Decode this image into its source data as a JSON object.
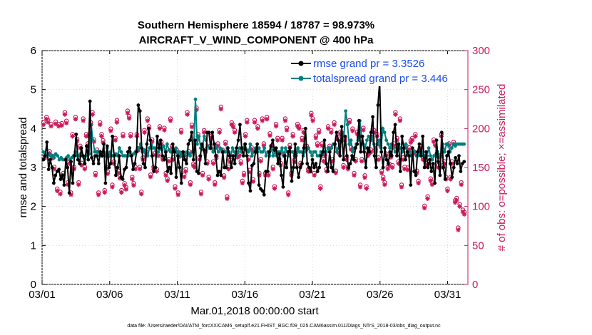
{
  "chart_data": {
    "type": "line",
    "title_line1": "Southern Hemisphere 18594 / 18787 = 98.973%",
    "title_line2": "AIRCRAFT_V_WIND_COMPONENT @ 400 hPa",
    "xlabel": "Mar.01,2018 00:00:00 start",
    "ylabel": "rmse and totalspread",
    "ylabel_right": "# of obs: o=possible; ×=assimilated",
    "footnote": "data file: /Users/raeder/DAI/ATM_forcXX/CAM6_setup/f.e21.FHIST_BGC.f09_025.CAM6assim.011/Diags_NTrS_2018-03/obs_diag_output.nc",
    "xlim": [
      0,
      31.5
    ],
    "ylim": [
      0,
      6
    ],
    "ylim_right": [
      0,
      300
    ],
    "x_ticks": [
      {
        "value": 0,
        "label": "03/01"
      },
      {
        "value": 5,
        "label": "03/06"
      },
      {
        "value": 10,
        "label": "03/11"
      },
      {
        "value": 15,
        "label": "03/16"
      },
      {
        "value": 20,
        "label": "03/21"
      },
      {
        "value": 25,
        "label": "03/26"
      },
      {
        "value": 30,
        "label": "03/31"
      }
    ],
    "y_ticks": [
      0,
      1,
      2,
      3,
      4,
      5,
      6
    ],
    "y_ticks_right": [
      0,
      50,
      100,
      150,
      200,
      250,
      300
    ],
    "series": [
      {
        "name": "rmse grand pr = 3.3526",
        "color": "#000000",
        "values": [
          3.2,
          3.3,
          3.65,
          2.95,
          3.2,
          3.0,
          2.6,
          2.8,
          2.9,
          2.95,
          2.7,
          2.8,
          2.55,
          3.2,
          3.0,
          2.35,
          3.15,
          2.6,
          3.3,
          3.85,
          3.2,
          3.1,
          3.5,
          3.3,
          3.1,
          3.55,
          3.2,
          4.7,
          3.25,
          3.1,
          3.3,
          3.3,
          3.1,
          3.4,
          3.3,
          3.6,
          2.6,
          3.55,
          3.0,
          3.1,
          3.8,
          3.3,
          2.8,
          3.0,
          3.3,
          2.75,
          2.7,
          2.95,
          3.0,
          3.4,
          3.5,
          3.3,
          2.95,
          3.1,
          3.4,
          4.6,
          4.45,
          3.5,
          3.1,
          3.0,
          3.6,
          4.0,
          3.7,
          3.3,
          2.9,
          3.0,
          3.8,
          3.5,
          3.7,
          3.3,
          3.2,
          3.4,
          2.9,
          3.0,
          2.85,
          3.6,
          3.4,
          2.75,
          3.3,
          3.0,
          2.6,
          3.4,
          3.2,
          3.1,
          3.6,
          3.7,
          3.9,
          3.2,
          3.7,
          2.9,
          2.85,
          3.3,
          3.6,
          3.45,
          3.1,
          3.9,
          3.9,
          3.5,
          3.9,
          3.6,
          3.3,
          2.8,
          2.9,
          2.8,
          3.4,
          3.0,
          3.0,
          3.5,
          3.3,
          3.0,
          3.3,
          3.1,
          3.5,
          3.7,
          4.1,
          3.5,
          3.3,
          3.6,
          3.3,
          2.6,
          2.4,
          3.05,
          3.1,
          3.4,
          3.6,
          2.55,
          2.45,
          2.4,
          2.3,
          2.9,
          2.9,
          3.4,
          3.55,
          3.7,
          3.45,
          3.5,
          3.1,
          3.35,
          2.8,
          2.5,
          3.3,
          3.0,
          3.4,
          3.5,
          2.65,
          3.0,
          3.6,
          3.0,
          2.75,
          3.0,
          3.1,
          3.5,
          4.0,
          3.1,
          3.0,
          2.9,
          3.2,
          3.0,
          3.1,
          2.9,
          3.0,
          3.3,
          3.4,
          3.7,
          3.1,
          2.9,
          3.4,
          3.0,
          2.9,
          3.6,
          3.9,
          3.7,
          3.3,
          4.05,
          3.2,
          3.8,
          3.3,
          3.0,
          3.1,
          3.3,
          3.2,
          3.5,
          3.6,
          4.2,
          3.4,
          3.8,
          3.4,
          3.0,
          3.5,
          3.4,
          3.9,
          4.3,
          3.3,
          3.0,
          4.6,
          5.2,
          3.4,
          3.0,
          3.5,
          3.2,
          3.1,
          3.4,
          3.3,
          3.9,
          4.1,
          3.3,
          3.6,
          2.9,
          3.8,
          3.5,
          3.2,
          3.4,
          3.3,
          2.55,
          3.5,
          2.9,
          2.8,
          3.4,
          3.6,
          3.3,
          3.8,
          3.0,
          3.4,
          3.0,
          3.2,
          2.9,
          3.1,
          2.6,
          3.7,
          3.15,
          2.8,
          3.9,
          3.0,
          2.7,
          3.3,
          3.4,
          3.1,
          2.75,
          3.0,
          3.25,
          3.1,
          3.3,
          2.9,
          3.1,
          3.15
        ]
      },
      {
        "name": "totalspread grand pr = 3.446",
        "color": "#007f7f",
        "values": [
          3.4,
          3.35,
          3.3,
          3.35,
          3.3,
          3.3,
          3.25,
          3.35,
          3.3,
          3.2,
          3.25,
          3.2,
          3.2,
          3.25,
          3.3,
          3.2,
          3.25,
          3.3,
          3.4,
          3.3,
          3.3,
          3.35,
          3.3,
          3.25,
          3.3,
          3.3,
          3.35,
          4.1,
          3.7,
          3.4,
          3.4,
          3.4,
          3.3,
          3.3,
          3.4,
          3.3,
          3.5,
          3.3,
          3.4,
          3.3,
          3.3,
          3.35,
          3.3,
          3.5,
          3.4,
          3.3,
          3.3,
          3.3,
          3.3,
          3.4,
          3.3,
          3.35,
          3.4,
          3.45,
          3.5,
          3.6,
          3.4,
          3.45,
          3.3,
          3.3,
          3.5,
          3.6,
          3.5,
          3.5,
          3.3,
          3.4,
          3.5,
          3.45,
          3.55,
          3.4,
          3.6,
          3.45,
          3.4,
          3.4,
          3.4,
          3.5,
          3.3,
          3.4,
          3.3,
          3.35,
          3.3,
          3.4,
          3.35,
          3.3,
          3.4,
          3.5,
          4.75,
          3.6,
          3.8,
          3.5,
          3.55,
          3.8,
          3.7,
          3.55,
          3.5,
          3.5,
          3.4,
          3.6,
          3.5,
          3.4,
          3.5,
          3.45,
          3.4,
          3.4,
          3.5,
          3.4,
          3.3,
          3.5,
          3.4,
          3.3,
          3.4,
          3.5,
          3.4,
          3.5,
          3.6,
          3.45,
          3.4,
          3.6,
          3.3,
          3.4,
          3.5,
          3.4,
          3.5,
          3.4,
          3.4,
          3.5,
          3.3,
          3.4,
          3.3,
          3.5,
          3.3,
          3.4,
          3.3,
          3.4,
          3.4,
          3.5,
          3.3,
          3.5,
          3.4,
          3.3,
          3.4,
          3.4,
          3.3,
          3.3,
          3.5,
          3.4,
          3.4,
          3.3,
          3.4,
          3.45,
          3.5,
          3.4,
          3.3,
          3.4,
          3.4,
          3.3,
          3.3,
          3.4,
          3.35,
          3.4,
          3.4,
          3.5,
          3.4,
          3.5,
          3.6,
          3.6,
          3.4,
          3.5,
          3.65,
          3.9,
          3.8,
          4.45,
          4.1,
          3.6,
          3.7,
          3.4,
          3.5,
          3.6,
          3.7,
          4.2,
          3.8,
          3.6,
          3.5,
          3.7,
          3.8,
          3.7,
          3.8,
          3.6,
          3.5,
          3.6,
          3.7,
          3.5,
          4.0,
          3.9,
          3.7,
          3.6,
          3.5,
          3.6,
          3.5,
          3.4,
          3.5,
          3.6,
          3.5,
          3.4,
          3.5,
          3.6,
          3.4,
          3.4,
          3.3,
          3.4,
          3.4,
          3.3,
          3.3,
          3.4,
          3.4,
          3.3,
          3.3,
          3.3,
          3.5,
          3.3,
          3.2,
          3.3,
          3.3,
          3.4,
          3.3,
          3.3,
          3.6,
          3.4,
          3.6,
          3.6,
          3.4,
          3.5,
          3.6,
          3.55,
          3.6,
          3.6,
          3.6,
          3.6,
          3.6
        ]
      }
    ],
    "obs_possible": [
      205,
      162,
      212,
      208,
      168,
      203,
      162,
      148,
      206,
      120,
      203,
      116,
      204,
      140,
      218,
      207,
      128,
      155,
      115,
      190,
      148,
      212,
      184,
      128,
      175,
      153,
      210,
      148,
      190,
      178,
      190,
      205,
      218,
      183,
      140,
      170,
      115,
      205,
      190,
      182,
      118,
      148,
      142,
      165,
      197,
      125,
      155,
      185,
      208,
      143,
      136,
      118,
      190,
      127,
      122,
      220,
      213,
      190,
      135,
      127,
      148,
      190,
      172,
      148,
      116,
      160,
      195,
      168,
      210,
      200,
      138,
      183,
      148,
      166,
      145,
      165,
      200,
      180,
      160,
      198,
      140,
      133,
      158,
      210,
      175,
      160,
      123,
      170,
      115,
      164,
      195,
      166,
      138,
      145,
      218,
      168,
      128,
      202,
      152,
      150,
      224,
      190,
      160,
      116,
      140,
      195,
      170,
      155,
      135,
      175,
      188,
      155,
      128,
      162,
      178,
      195,
      225,
      170,
      137,
      180,
      110,
      148,
      157,
      205,
      202,
      195,
      166,
      163,
      165,
      155,
      130,
      140,
      190,
      208,
      160,
      144,
      173,
      132,
      208,
      170,
      200,
      140,
      158,
      210,
      178,
      140,
      212,
      140,
      191,
      175,
      148,
      123,
      203,
      185,
      158,
      153,
      185,
      165,
      210,
      198,
      115,
      176,
      140,
      190,
      157,
      168,
      203,
      200,
      153,
      185,
      195,
      175,
      175,
      145,
      145,
      217,
      210,
      140,
      188,
      178,
      195,
      123,
      178,
      158,
      165,
      145,
      200,
      175,
      195,
      158,
      205,
      143,
      186,
      168,
      193,
      192,
      150,
      185,
      160,
      148,
      208,
      173,
      197,
      140,
      158,
      193,
      188,
      125,
      158,
      198,
      137,
      123,
      165,
      168,
      170,
      185,
      195,
      170,
      190,
      160,
      178,
      143,
      135,
      128,
      165,
      148,
      152,
      163,
      150,
      178,
      218,
      185,
      155,
      210,
      125,
      160,
      148,
      175,
      147,
      173,
      182,
      185,
      168,
      190,
      143,
      130,
      168,
      175,
      160,
      98,
      153,
      110,
      155,
      133,
      128,
      183,
      178,
      165,
      150,
      163,
      190,
      150,
      155,
      135,
      120,
      178,
      135,
      155,
      180,
      105,
      108,
      70,
      100,
      128,
      93,
      90
    ],
    "obs_assimilated": [
      205,
      162,
      212,
      208,
      168,
      203,
      162,
      148,
      206,
      120,
      203,
      116,
      204,
      140,
      218,
      207,
      128,
      155,
      115,
      190,
      148,
      212,
      184,
      128,
      175,
      153,
      210,
      148,
      190,
      178,
      190,
      205,
      218,
      183,
      140,
      170,
      115,
      205,
      190,
      182,
      118,
      148,
      142,
      165,
      197,
      125,
      155,
      185,
      208,
      143,
      136,
      118,
      190,
      127,
      122,
      220,
      213,
      190,
      135,
      127,
      148,
      190,
      172,
      148,
      116,
      160,
      195,
      168,
      210,
      200,
      138,
      183,
      148,
      166,
      145,
      165,
      200,
      180,
      160,
      198,
      140,
      133,
      158,
      210,
      175,
      160,
      123,
      170,
      115,
      164,
      195,
      166,
      138,
      145,
      218,
      168,
      128,
      202,
      152,
      150,
      224,
      190,
      160,
      116,
      140,
      195,
      170,
      155,
      135,
      175,
      188,
      155,
      128,
      162,
      178,
      195,
      225,
      170,
      137,
      180,
      110,
      148,
      157,
      205,
      202,
      195,
      166,
      163,
      165,
      155,
      130,
      140,
      190,
      208,
      160,
      144,
      173,
      132,
      208,
      170,
      200,
      140,
      158,
      210,
      178,
      140,
      212,
      140,
      191,
      175,
      148,
      123,
      203,
      185,
      158,
      153,
      185,
      165,
      210,
      198,
      115,
      176,
      140,
      190,
      157,
      168,
      203,
      200,
      153,
      185,
      195,
      175,
      175,
      145,
      145,
      217,
      210,
      140,
      188,
      178,
      195,
      123,
      178,
      158,
      165,
      145,
      200,
      175,
      195,
      158,
      205,
      143,
      186,
      168,
      193,
      192,
      150,
      185,
      160,
      148,
      208,
      173,
      197,
      140,
      158,
      193,
      188,
      125,
      158,
      198,
      137,
      123,
      165,
      168,
      170,
      185,
      195,
      170,
      190,
      160,
      178,
      143,
      135,
      128,
      165,
      148,
      152,
      163,
      150,
      178,
      218,
      185,
      155,
      210,
      125,
      160,
      148,
      175,
      147,
      173,
      182,
      185,
      168,
      190,
      143,
      130,
      168,
      175,
      160,
      98,
      153,
      110,
      155,
      133,
      128,
      183,
      178,
      165,
      150,
      163,
      190,
      150,
      155,
      135,
      120,
      178,
      135,
      155,
      180,
      105,
      108,
      70,
      100,
      128,
      93,
      90
    ]
  }
}
